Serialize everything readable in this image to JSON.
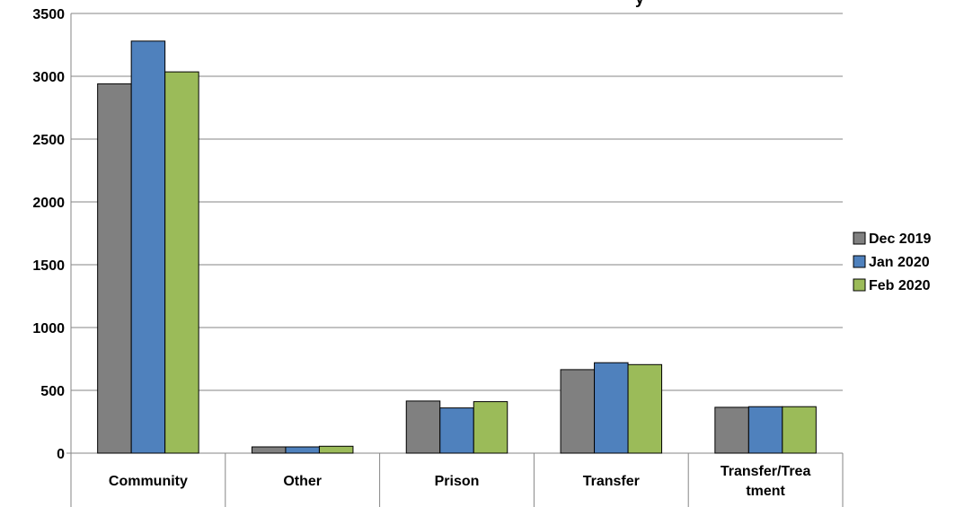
{
  "chart_data": {
    "type": "bar",
    "title": "",
    "title_fragment_visible": "y",
    "xlabel": "",
    "ylabel": "",
    "categories": [
      "Community",
      "Other",
      "Prison",
      "Transfer",
      "Transfer/Treatment"
    ],
    "category_display": [
      [
        "Community"
      ],
      [
        "Other"
      ],
      [
        "Prison"
      ],
      [
        "Transfer"
      ],
      [
        "Transfer/Trea",
        "tment"
      ]
    ],
    "series": [
      {
        "name": "Dec 2019",
        "color": "#808080",
        "values": [
          2940,
          50,
          415,
          665,
          365
        ]
      },
      {
        "name": "Jan 2020",
        "color": "#4F81BD",
        "values": [
          3280,
          50,
          360,
          720,
          370
        ]
      },
      {
        "name": "Feb 2020",
        "color": "#9BBB59",
        "values": [
          3035,
          55,
          410,
          705,
          370
        ]
      }
    ],
    "ylim": [
      0,
      3500
    ],
    "yticks": [
      0,
      500,
      1000,
      1500,
      2000,
      2500,
      3000,
      3500
    ],
    "grid": true,
    "legend_position": "right"
  }
}
